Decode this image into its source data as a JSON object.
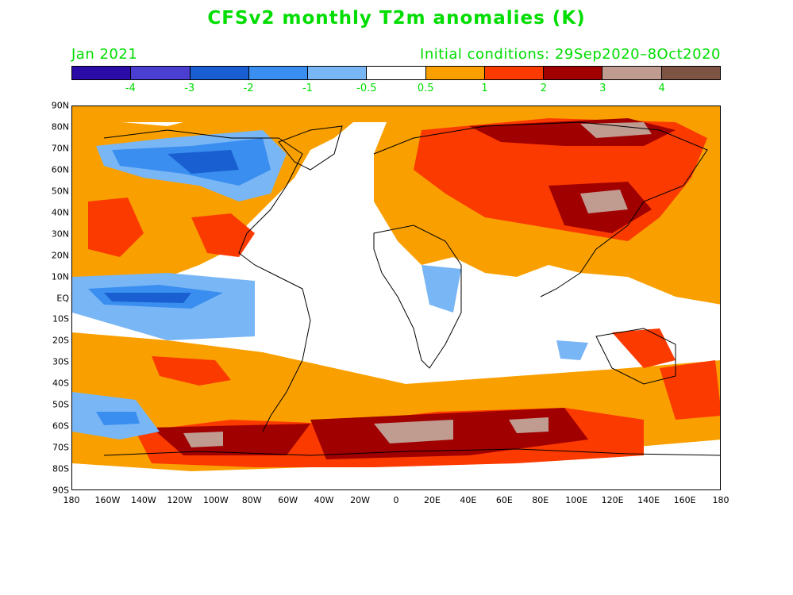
{
  "title": "CFSv2 monthly T2m anomalies (K)",
  "valid_month": "Jan 2021",
  "initial_conditions": "Initial conditions: 29Sep2020–8Oct2020",
  "colorbar": {
    "colors": [
      "#2a0ba6",
      "#4a3fd0",
      "#1a5fd1",
      "#3a8ef0",
      "#79b6f5",
      "#ffffff",
      "#f9a000",
      "#fb3a00",
      "#a00000",
      "#c09b90",
      "#7d5443"
    ],
    "labels": [
      "-4",
      "-3",
      "-2",
      "-1",
      "-0.5",
      "0.5",
      "1",
      "2",
      "3",
      "4"
    ]
  },
  "map": {
    "lat_labels": [
      "90N",
      "80N",
      "70N",
      "60N",
      "50N",
      "40N",
      "30N",
      "20N",
      "10N",
      "EQ",
      "10S",
      "20S",
      "30S",
      "40S",
      "50S",
      "60S",
      "70S",
      "80S",
      "90S"
    ],
    "lon_labels": [
      "180",
      "160W",
      "140W",
      "120W",
      "100W",
      "80W",
      "60W",
      "40W",
      "20W",
      "0",
      "20E",
      "40E",
      "60E",
      "80E",
      "100E",
      "120E",
      "140E",
      "160E",
      "180"
    ]
  }
}
